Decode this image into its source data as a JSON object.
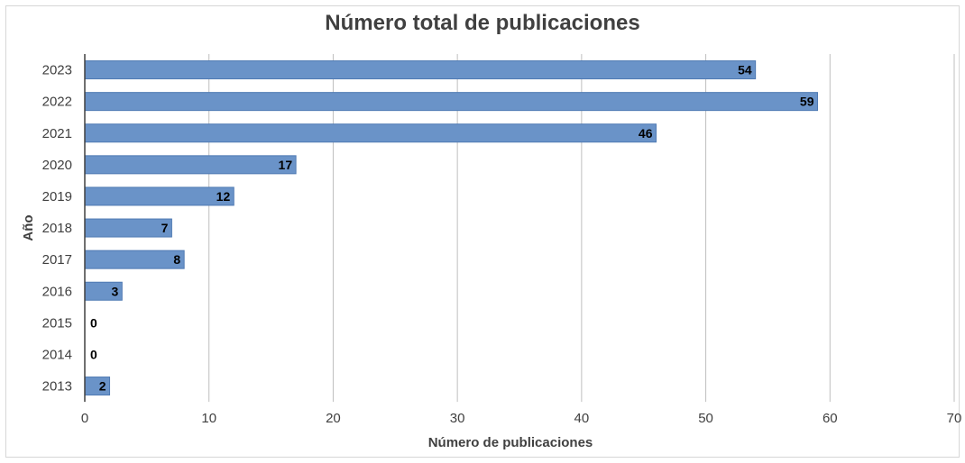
{
  "chart_data": {
    "type": "bar",
    "orientation": "horizontal",
    "title": "Número total de publicaciones",
    "xlabel": "Número de publicaciones",
    "ylabel": "Año",
    "categories": [
      "2023",
      "2022",
      "2021",
      "2020",
      "2019",
      "2018",
      "2017",
      "2016",
      "2015",
      "2014",
      "2013"
    ],
    "values": [
      54,
      59,
      46,
      17,
      12,
      7,
      8,
      3,
      0,
      0,
      2
    ],
    "xlim": [
      0,
      70
    ],
    "xticks": [
      0,
      10,
      20,
      30,
      40,
      50,
      60,
      70
    ],
    "grid": "vertical",
    "bar_color": "#6a93c8",
    "bar_border_color": "#4f7ab3",
    "grid_color": "#bfbfbf"
  }
}
